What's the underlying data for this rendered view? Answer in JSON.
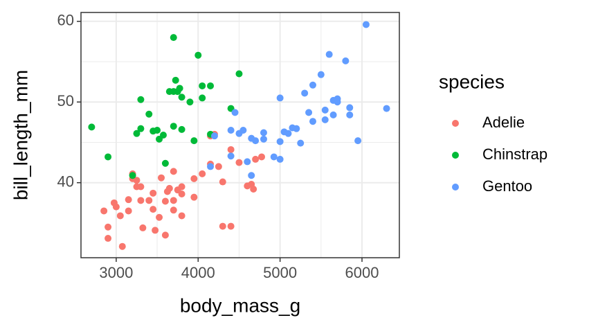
{
  "chart_data": {
    "type": "scatter",
    "x_label": "body_mass_g",
    "y_label": "bill_length_mm",
    "xlim": [
      2570,
      6456
    ],
    "ylim": [
      30.7,
      61.1
    ],
    "xticks": [
      3000,
      4000,
      5000,
      6000
    ],
    "yticks": [
      40,
      50,
      60
    ],
    "grid": true,
    "legend_title": "species",
    "legend_position": "right",
    "series": [
      {
        "name": "Adelie",
        "color": "#F8766D",
        "x": [
          3750,
          3800,
          3250,
          3450,
          3650,
          3625,
          4675,
          3475,
          4250,
          3300,
          3700,
          3200,
          3800,
          4400,
          3700,
          3450,
          4500,
          3325,
          4200,
          3400,
          3600,
          3800,
          3950,
          3550,
          3200,
          3150,
          3950,
          3250,
          2850,
          3300,
          4650,
          3150,
          4400,
          3000,
          4600,
          2975,
          4150,
          4300,
          2900,
          3700,
          4050,
          3600,
          4150,
          4700,
          3050,
          2900,
          3075,
          4775,
          4300,
          3525
        ],
        "values": [
          39.1,
          39.5,
          40.3,
          36.7,
          39.3,
          38.9,
          39.2,
          34.1,
          42.0,
          37.8,
          37.8,
          41.1,
          38.6,
          34.6,
          36.6,
          38.7,
          42.5,
          34.4,
          46.0,
          37.8,
          37.7,
          35.9,
          38.2,
          40.6,
          40.5,
          37.9,
          40.5,
          39.5,
          36.5,
          39.5,
          39.8,
          36.5,
          44.1,
          37.0,
          39.6,
          37.5,
          42.3,
          40.1,
          34.5,
          41.4,
          41.1,
          33.5,
          45.8,
          42.9,
          35.9,
          33.1,
          32.1,
          43.2,
          34.6,
          35.7
        ]
      },
      {
        "name": "Chinstrap",
        "color": "#00BA38",
        "x": [
          3500,
          3900,
          3650,
          3525,
          3725,
          3950,
          3250,
          3750,
          4150,
          3700,
          3800,
          3775,
          3700,
          4050,
          3575,
          4050,
          3300,
          3700,
          3450,
          4400,
          3600,
          3400,
          2900,
          3800,
          3300,
          4150,
          2700,
          4000,
          3200,
          4500
        ],
        "values": [
          46.5,
          50.0,
          51.3,
          45.4,
          52.7,
          45.2,
          46.1,
          51.3,
          46.0,
          51.3,
          46.6,
          51.7,
          47.0,
          52.0,
          45.9,
          50.5,
          50.3,
          58.0,
          46.4,
          49.2,
          42.4,
          48.5,
          43.2,
          50.6,
          46.7,
          52.0,
          46.9,
          55.8,
          40.9,
          53.5
        ]
      },
      {
        "name": "Gentoo",
        "color": "#619CFF",
        "x": [
          4500,
          5700,
          4450,
          5650,
          5400,
          4550,
          4800,
          5200,
          4400,
          5150,
          4650,
          5550,
          4650,
          5850,
          4200,
          5850,
          4150,
          6300,
          4800,
          5350,
          5700,
          5000,
          4400,
          5050,
          5000,
          5100,
          5650,
          4600,
          5550,
          5250,
          6050,
          5600,
          5800,
          5500,
          5950,
          5000,
          5400,
          4925,
          5300,
          4700
        ],
        "values": [
          46.1,
          50.0,
          48.7,
          50.2,
          47.6,
          46.5,
          45.4,
          46.7,
          43.3,
          46.8,
          40.9,
          49.0,
          45.5,
          48.4,
          45.8,
          49.3,
          42.0,
          49.2,
          46.2,
          48.7,
          50.4,
          45.1,
          46.5,
          46.3,
          42.9,
          46.1,
          48.4,
          42.6,
          47.8,
          44.9,
          59.6,
          55.9,
          55.1,
          53.4,
          45.2,
          50.5,
          52.1,
          43.2,
          51.1,
          45.2
        ]
      }
    ]
  }
}
